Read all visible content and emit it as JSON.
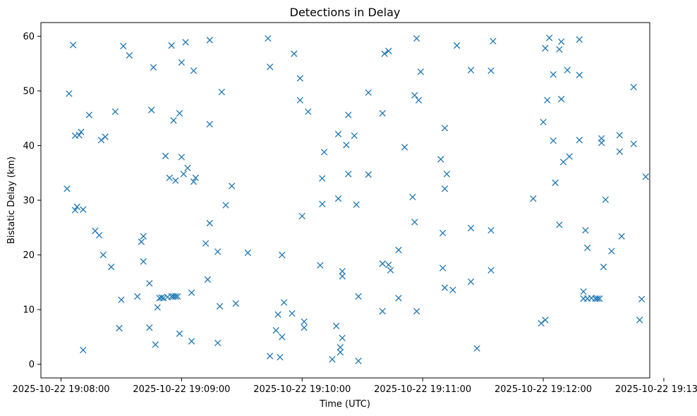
{
  "chart_data": {
    "type": "scatter",
    "title": "Detections in Delay",
    "xlabel": "Time (UTC)",
    "ylabel": "Bistatic Delay (km)",
    "marker": "x",
    "color": "#1f77b4",
    "grid": false,
    "xlim": [
      "2025-10-22 19:07:50",
      "2025-10-22 19:12:53"
    ],
    "ylim": [
      -2.5,
      62.5
    ],
    "xticks": [
      {
        "value": "2025-10-22 19:08:00",
        "label": "2025-10-22 19:08:00"
      },
      {
        "value": "2025-10-22 19:09:00",
        "label": "2025-10-22 19:09:00"
      },
      {
        "value": "2025-10-22 19:10:00",
        "label": "2025-10-22 19:10:00"
      },
      {
        "value": "2025-10-22 19:11:00",
        "label": "2025-10-22 19:11:00"
      },
      {
        "value": "2025-10-22 19:12:00",
        "label": "2025-10-22 19:12:00"
      },
      {
        "value": "2025-10-22 19:13:00",
        "label": "2025-10-22 19:13:00"
      }
    ],
    "yticks": [
      0,
      10,
      20,
      30,
      40,
      50,
      60
    ],
    "points": [
      [
        "2025-10-22 19:08:03",
        32.1
      ],
      [
        "2025-10-22 19:08:04",
        49.5
      ],
      [
        "2025-10-22 19:08:06",
        58.4
      ],
      [
        "2025-10-22 19:08:07",
        41.8
      ],
      [
        "2025-10-22 19:08:07",
        28.2
      ],
      [
        "2025-10-22 19:08:08",
        28.8
      ],
      [
        "2025-10-22 19:08:09",
        41.9
      ],
      [
        "2025-10-22 19:08:10",
        42.5
      ],
      [
        "2025-10-22 19:08:11",
        28.3
      ],
      [
        "2025-10-22 19:08:11",
        2.6
      ],
      [
        "2025-10-22 19:08:14",
        45.6
      ],
      [
        "2025-10-22 19:08:17",
        24.4
      ],
      [
        "2025-10-22 19:08:19",
        23.6
      ],
      [
        "2025-10-22 19:08:20",
        41.0
      ],
      [
        "2025-10-22 19:08:21",
        20.0
      ],
      [
        "2025-10-22 19:08:22",
        41.6
      ],
      [
        "2025-10-22 19:08:25",
        17.8
      ],
      [
        "2025-10-22 19:08:27",
        46.2
      ],
      [
        "2025-10-22 19:08:29",
        6.6
      ],
      [
        "2025-10-22 19:08:30",
        11.8
      ],
      [
        "2025-10-22 19:08:31",
        58.2
      ],
      [
        "2025-10-22 19:08:34",
        56.5
      ],
      [
        "2025-10-22 19:08:38",
        12.4
      ],
      [
        "2025-10-22 19:08:40",
        22.4
      ],
      [
        "2025-10-22 19:08:41",
        23.4
      ],
      [
        "2025-10-22 19:08:41",
        18.8
      ],
      [
        "2025-10-22 19:08:44",
        14.8
      ],
      [
        "2025-10-22 19:08:44",
        6.7
      ],
      [
        "2025-10-22 19:08:45",
        46.5
      ],
      [
        "2025-10-22 19:08:46",
        54.3
      ],
      [
        "2025-10-22 19:08:47",
        3.6
      ],
      [
        "2025-10-22 19:08:48",
        10.4
      ],
      [
        "2025-10-22 19:08:49",
        12.1
      ],
      [
        "2025-10-22 19:08:50",
        12.2
      ],
      [
        "2025-10-22 19:08:51",
        12.1
      ],
      [
        "2025-10-22 19:08:52",
        38.1
      ],
      [
        "2025-10-22 19:08:53",
        12.3
      ],
      [
        "2025-10-22 19:08:54",
        34.1
      ],
      [
        "2025-10-22 19:08:55",
        58.3
      ],
      [
        "2025-10-22 19:08:55",
        12.4
      ],
      [
        "2025-10-22 19:08:56",
        44.6
      ],
      [
        "2025-10-22 19:08:56",
        12.4
      ],
      [
        "2025-10-22 19:08:57",
        33.6
      ],
      [
        "2025-10-22 19:08:57",
        12.4
      ],
      [
        "2025-10-22 19:08:58",
        12.4
      ],
      [
        "2025-10-22 19:08:59",
        45.9
      ],
      [
        "2025-10-22 19:08:59",
        5.6
      ],
      [
        "2025-10-22 19:09:00",
        55.2
      ],
      [
        "2025-10-22 19:09:00",
        37.9
      ],
      [
        "2025-10-22 19:09:01",
        34.8
      ],
      [
        "2025-10-22 19:09:02",
        58.9
      ],
      [
        "2025-10-22 19:09:03",
        35.9
      ],
      [
        "2025-10-22 19:09:05",
        4.2
      ],
      [
        "2025-10-22 19:09:05",
        13.1
      ],
      [
        "2025-10-22 19:09:06",
        53.7
      ],
      [
        "2025-10-22 19:09:06",
        33.4
      ],
      [
        "2025-10-22 19:09:07",
        34.1
      ],
      [
        "2025-10-22 19:09:12",
        22.1
      ],
      [
        "2025-10-22 19:09:13",
        15.5
      ],
      [
        "2025-10-22 19:09:14",
        59.3
      ],
      [
        "2025-10-22 19:09:14",
        43.9
      ],
      [
        "2025-10-22 19:09:14",
        25.8
      ],
      [
        "2025-10-22 19:09:18",
        20.6
      ],
      [
        "2025-10-22 19:09:18",
        3.9
      ],
      [
        "2025-10-22 19:09:19",
        10.6
      ],
      [
        "2025-10-22 19:09:20",
        49.8
      ],
      [
        "2025-10-22 19:09:22",
        29.1
      ],
      [
        "2025-10-22 19:09:25",
        32.6
      ],
      [
        "2025-10-22 19:09:27",
        11.1
      ],
      [
        "2025-10-22 19:09:33",
        20.4
      ],
      [
        "2025-10-22 19:09:43",
        59.6
      ],
      [
        "2025-10-22 19:09:44",
        54.4
      ],
      [
        "2025-10-22 19:09:44",
        1.5
      ],
      [
        "2025-10-22 19:09:47",
        6.2
      ],
      [
        "2025-10-22 19:09:48",
        9.1
      ],
      [
        "2025-10-22 19:09:49",
        1.3
      ],
      [
        "2025-10-22 19:09:50",
        20.0
      ],
      [
        "2025-10-22 19:09:50",
        5.0
      ],
      [
        "2025-10-22 19:09:51",
        11.3
      ],
      [
        "2025-10-22 19:09:55",
        9.3
      ],
      [
        "2025-10-22 19:09:56",
        56.8
      ],
      [
        "2025-10-22 19:09:59",
        52.3
      ],
      [
        "2025-10-22 19:09:59",
        48.3
      ],
      [
        "2025-10-22 19:10:00",
        27.1
      ],
      [
        "2025-10-22 19:10:01",
        7.8
      ],
      [
        "2025-10-22 19:10:01",
        6.7
      ],
      [
        "2025-10-22 19:10:03",
        46.2
      ],
      [
        "2025-10-22 19:10:09",
        18.1
      ],
      [
        "2025-10-22 19:10:10",
        34.0
      ],
      [
        "2025-10-22 19:10:10",
        29.3
      ],
      [
        "2025-10-22 19:10:11",
        38.8
      ],
      [
        "2025-10-22 19:10:15",
        0.9
      ],
      [
        "2025-10-22 19:10:17",
        7.0
      ],
      [
        "2025-10-22 19:10:18",
        42.1
      ],
      [
        "2025-10-22 19:10:18",
        30.3
      ],
      [
        "2025-10-22 19:10:19",
        3.1
      ],
      [
        "2025-10-22 19:10:19",
        2.2
      ],
      [
        "2025-10-22 19:10:20",
        4.8
      ],
      [
        "2025-10-22 19:10:20",
        17.0
      ],
      [
        "2025-10-22 19:10:20",
        16.1
      ],
      [
        "2025-10-22 19:10:22",
        40.1
      ],
      [
        "2025-10-22 19:10:23",
        45.6
      ],
      [
        "2025-10-22 19:10:23",
        34.8
      ],
      [
        "2025-10-22 19:10:26",
        41.8
      ],
      [
        "2025-10-22 19:10:27",
        29.2
      ],
      [
        "2025-10-22 19:10:28",
        12.4
      ],
      [
        "2025-10-22 19:10:28",
        0.6
      ],
      [
        "2025-10-22 19:10:33",
        49.7
      ],
      [
        "2025-10-22 19:10:33",
        34.7
      ],
      [
        "2025-10-22 19:10:40",
        45.9
      ],
      [
        "2025-10-22 19:10:40",
        18.4
      ],
      [
        "2025-10-22 19:10:40",
        9.7
      ],
      [
        "2025-10-22 19:10:41",
        56.8
      ],
      [
        "2025-10-22 19:10:43",
        57.3
      ],
      [
        "2025-10-22 19:10:43",
        18.2
      ],
      [
        "2025-10-22 19:10:44",
        17.2
      ],
      [
        "2025-10-22 19:10:48",
        20.9
      ],
      [
        "2025-10-22 19:10:48",
        12.1
      ],
      [
        "2025-10-22 19:10:51",
        39.7
      ],
      [
        "2025-10-22 19:10:55",
        30.6
      ],
      [
        "2025-10-22 19:10:56",
        49.2
      ],
      [
        "2025-10-22 19:10:56",
        26.0
      ],
      [
        "2025-10-22 19:10:57",
        59.6
      ],
      [
        "2025-10-22 19:10:57",
        9.7
      ],
      [
        "2025-10-22 19:10:58",
        48.3
      ],
      [
        "2025-10-22 19:10:59",
        53.5
      ],
      [
        "2025-10-22 19:11:09",
        37.5
      ],
      [
        "2025-10-22 19:11:10",
        24.0
      ],
      [
        "2025-10-22 19:11:10",
        17.6
      ],
      [
        "2025-10-22 19:11:11",
        43.2
      ],
      [
        "2025-10-22 19:11:11",
        32.1
      ],
      [
        "2025-10-22 19:11:12",
        34.8
      ],
      [
        "2025-10-22 19:11:11",
        14.0
      ],
      [
        "2025-10-22 19:11:15",
        13.6
      ],
      [
        "2025-10-22 19:11:17",
        58.3
      ],
      [
        "2025-10-22 19:11:24",
        53.8
      ],
      [
        "2025-10-22 19:11:24",
        24.9
      ],
      [
        "2025-10-22 19:11:24",
        15.1
      ],
      [
        "2025-10-22 19:11:27",
        2.9
      ],
      [
        "2025-10-22 19:11:34",
        53.7
      ],
      [
        "2025-10-22 19:11:34",
        24.5
      ],
      [
        "2025-10-22 19:11:34",
        17.2
      ],
      [
        "2025-10-22 19:11:35",
        59.1
      ],
      [
        "2025-10-22 19:11:55",
        30.3
      ],
      [
        "2025-10-22 19:11:59",
        7.5
      ],
      [
        "2025-10-22 19:12:00",
        44.3
      ],
      [
        "2025-10-22 19:12:01",
        57.8
      ],
      [
        "2025-10-22 19:12:01",
        8.1
      ],
      [
        "2025-10-22 19:12:02",
        48.3
      ],
      [
        "2025-10-22 19:12:03",
        59.7
      ],
      [
        "2025-10-22 19:12:05",
        53.0
      ],
      [
        "2025-10-22 19:12:05",
        40.9
      ],
      [
        "2025-10-22 19:12:06",
        33.2
      ],
      [
        "2025-10-22 19:12:08",
        57.6
      ],
      [
        "2025-10-22 19:12:08",
        25.5
      ],
      [
        "2025-10-22 19:12:09",
        59.0
      ],
      [
        "2025-10-22 19:12:09",
        48.5
      ],
      [
        "2025-10-22 19:12:10",
        37.0
      ],
      [
        "2025-10-22 19:12:12",
        53.8
      ],
      [
        "2025-10-22 19:12:13",
        38.0
      ],
      [
        "2025-10-22 19:12:18",
        59.4
      ],
      [
        "2025-10-22 19:12:18",
        52.9
      ],
      [
        "2025-10-22 19:12:18",
        41.0
      ],
      [
        "2025-10-22 19:12:20",
        13.3
      ],
      [
        "2025-10-22 19:12:20",
        12.0
      ],
      [
        "2025-10-22 19:12:21",
        24.5
      ],
      [
        "2025-10-22 19:12:22",
        21.3
      ],
      [
        "2025-10-22 19:12:22",
        12.0
      ],
      [
        "2025-10-22 19:12:24",
        12.1
      ],
      [
        "2025-10-22 19:12:26",
        12.0
      ],
      [
        "2025-10-22 19:12:27",
        12.0
      ],
      [
        "2025-10-22 19:12:28",
        12.0
      ],
      [
        "2025-10-22 19:12:29",
        41.3
      ],
      [
        "2025-10-22 19:12:29",
        40.5
      ],
      [
        "2025-10-22 19:12:30",
        17.8
      ],
      [
        "2025-10-22 19:12:31",
        30.1
      ],
      [
        "2025-10-22 19:12:34",
        20.7
      ],
      [
        "2025-10-22 19:12:38",
        41.9
      ],
      [
        "2025-10-22 19:12:38",
        38.9
      ],
      [
        "2025-10-22 19:12:39",
        23.4
      ],
      [
        "2025-10-22 19:12:45",
        50.7
      ],
      [
        "2025-10-22 19:12:45",
        40.3
      ],
      [
        "2025-10-22 19:12:48",
        8.1
      ],
      [
        "2025-10-22 19:12:49",
        11.9
      ],
      [
        "2025-10-22 19:12:51",
        34.3
      ]
    ]
  }
}
